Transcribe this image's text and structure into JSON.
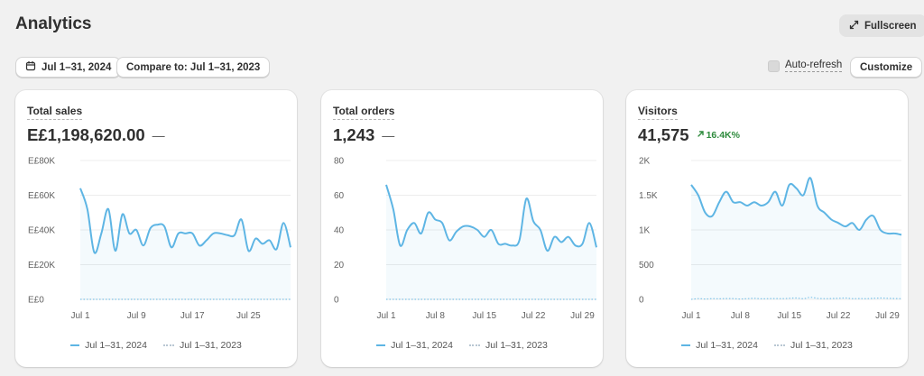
{
  "page": {
    "title": "Analytics"
  },
  "toolbar": {
    "fullscreen_label": "Fullscreen",
    "date_label": "Jul 1–31, 2024",
    "compare_label": "Compare to: Jul 1–31, 2023",
    "autorefresh_label": "Auto-refresh",
    "autorefresh_checked": false,
    "customize_label": "Customize"
  },
  "cards": [
    {
      "title": "Total sales",
      "value": "E£1,198,620.00",
      "delta": "—"
    },
    {
      "title": "Total orders",
      "value": "1,243",
      "delta": "—"
    },
    {
      "title": "Visitors",
      "value": "41,575",
      "delta": "16.4K%"
    }
  ],
  "legend": {
    "current": "Jul 1–31, 2024",
    "previous": "Jul 1–31, 2023"
  },
  "colors": {
    "current": "#5eb5e4",
    "previous": "#b9c7d3",
    "delta_up": "#2e8b3d"
  },
  "chart_data": [
    {
      "type": "line",
      "title": "Total sales",
      "x": [
        1,
        2,
        3,
        4,
        5,
        6,
        7,
        8,
        9,
        10,
        11,
        12,
        13,
        14,
        15,
        16,
        17,
        18,
        19,
        20,
        21,
        22,
        23,
        24,
        25,
        26,
        27,
        28,
        29,
        30,
        31
      ],
      "xticks": [
        "Jul 1",
        "Jul 9",
        "Jul 17",
        "Jul 25"
      ],
      "xtick_days": [
        1,
        9,
        17,
        25
      ],
      "yticks": [
        "E£0",
        "E£20K",
        "E£40K",
        "E£60K",
        "E£80K"
      ],
      "ylim": [
        0,
        80000
      ],
      "series": [
        {
          "name": "Jul 1–31, 2024",
          "values": [
            64000,
            52000,
            27000,
            38000,
            52000,
            28000,
            49000,
            38000,
            40000,
            31000,
            41000,
            43000,
            42000,
            30000,
            38000,
            38000,
            38000,
            31000,
            34000,
            38000,
            38000,
            37000,
            37000,
            46000,
            28000,
            35000,
            32000,
            34000,
            29000,
            44000,
            30000
          ]
        },
        {
          "name": "Jul 1–31, 2023",
          "values": [
            0,
            0,
            0,
            0,
            0,
            0,
            0,
            0,
            0,
            0,
            0,
            0,
            0,
            0,
            0,
            0,
            0,
            0,
            0,
            0,
            0,
            0,
            0,
            0,
            0,
            0,
            0,
            0,
            0,
            0,
            0
          ]
        }
      ]
    },
    {
      "type": "line",
      "title": "Total orders",
      "x": [
        1,
        2,
        3,
        4,
        5,
        6,
        7,
        8,
        9,
        10,
        11,
        12,
        13,
        14,
        15,
        16,
        17,
        18,
        19,
        20,
        21,
        22,
        23,
        24,
        25,
        26,
        27,
        28,
        29,
        30,
        31
      ],
      "xticks": [
        "Jul 1",
        "Jul 8",
        "Jul 15",
        "Jul 22",
        "Jul 29"
      ],
      "xtick_days": [
        1,
        8,
        15,
        22,
        29
      ],
      "yticks": [
        "0",
        "20",
        "40",
        "60",
        "80"
      ],
      "ylim": [
        0,
        80
      ],
      "series": [
        {
          "name": "Jul 1–31, 2024",
          "values": [
            66,
            52,
            31,
            40,
            44,
            38,
            50,
            46,
            44,
            34,
            39,
            42,
            42,
            40,
            36,
            40,
            32,
            32,
            31,
            34,
            58,
            45,
            40,
            28,
            36,
            33,
            36,
            31,
            32,
            44,
            30
          ]
        },
        {
          "name": "Jul 1–31, 2023",
          "values": [
            0,
            0,
            0,
            0,
            0,
            0,
            0,
            0,
            0,
            0,
            0,
            0,
            0,
            0,
            0,
            0,
            0,
            0,
            0,
            0,
            0,
            0,
            0,
            0,
            0,
            0,
            0,
            0,
            0,
            0,
            0
          ]
        }
      ]
    },
    {
      "type": "line",
      "title": "Visitors",
      "x": [
        1,
        2,
        3,
        4,
        5,
        6,
        7,
        8,
        9,
        10,
        11,
        12,
        13,
        14,
        15,
        16,
        17,
        18,
        19,
        20,
        21,
        22,
        23,
        24,
        25,
        26,
        27,
        28,
        29,
        30,
        31
      ],
      "xticks": [
        "Jul 1",
        "Jul 8",
        "Jul 15",
        "Jul 22",
        "Jul 29"
      ],
      "xtick_days": [
        1,
        8,
        15,
        22,
        29
      ],
      "yticks": [
        "0",
        "500",
        "1K",
        "1.5K",
        "2K"
      ],
      "ylim": [
        0,
        2000
      ],
      "series": [
        {
          "name": "Jul 1–31, 2024",
          "values": [
            1650,
            1500,
            1250,
            1200,
            1400,
            1550,
            1400,
            1400,
            1350,
            1400,
            1350,
            1400,
            1550,
            1350,
            1650,
            1600,
            1500,
            1750,
            1350,
            1250,
            1150,
            1100,
            1050,
            1100,
            1000,
            1150,
            1200,
            1000,
            950,
            950,
            930
          ]
        },
        {
          "name": "Jul 1–31, 2023",
          "values": [
            0,
            10,
            5,
            10,
            8,
            12,
            10,
            5,
            10,
            15,
            8,
            10,
            12,
            10,
            15,
            20,
            10,
            30,
            15,
            10,
            12,
            15,
            20,
            10,
            12,
            10,
            15,
            20,
            15,
            12,
            10
          ]
        }
      ]
    }
  ]
}
